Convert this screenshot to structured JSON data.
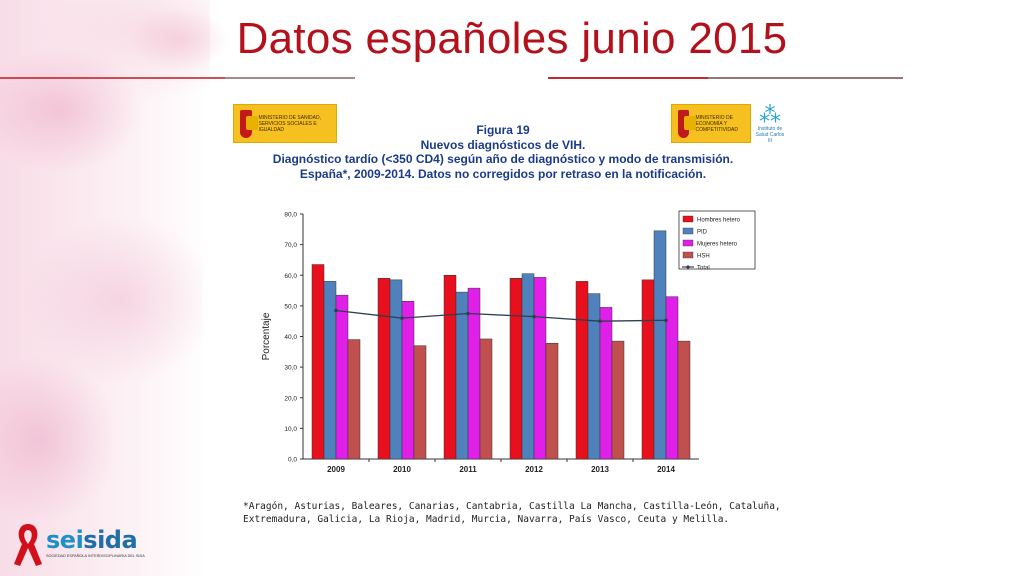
{
  "slide": {
    "title": "Datos españoles junio 2015"
  },
  "logos": {
    "left_ministry": "MINISTERIO DE SANIDAD, SERVICIOS SOCIALES E IGUALDAD",
    "right_ministry": "MINISTERIO DE ECONOMÍA Y COMPETITIVIDAD",
    "institute": "Instituto de Salud Carlos III",
    "society_word_a": "sei",
    "society_word_b": "sida",
    "society_sub": "SOCIEDAD ESPAÑOLA INTERDISCIPLINARIA DEL SIDA"
  },
  "figure": {
    "number": "Figura 19",
    "line1": "Nuevos diagnósticos de VIH.",
    "line2": "Diagnóstico tardío (<350 CD4) según año de diagnóstico y modo de transmisión.",
    "line3": "España*, 2009-2014. Datos no corregidos por retraso en la notificación.",
    "footnote": "*Aragón, Asturias, Baleares, Canarias, Cantabria, Castilla La Mancha, Castilla-León, Cataluña, Extremadura, Galicia, La Rioja, Madrid, Murcia, Navarra, País Vasco, Ceuta y Melilla."
  },
  "chart_data": {
    "type": "bar",
    "categories": [
      "2009",
      "2010",
      "2011",
      "2012",
      "2013",
      "2014"
    ],
    "series": [
      {
        "name": "Hombres hetero",
        "color": "#e8101c",
        "values": [
          63.5,
          59.0,
          60.0,
          59.0,
          58.0,
          58.5
        ]
      },
      {
        "name": "PID",
        "color": "#4f81bd",
        "values": [
          58.0,
          58.5,
          54.5,
          60.5,
          54.0,
          74.5
        ]
      },
      {
        "name": "Mujeres hetero",
        "color": "#e020e8",
        "values": [
          53.5,
          51.5,
          55.8,
          59.3,
          49.5,
          53.0
        ]
      },
      {
        "name": "HSH",
        "color": "#c0504d",
        "values": [
          39.0,
          37.0,
          39.2,
          37.8,
          38.5,
          38.5
        ]
      }
    ],
    "line_series": {
      "name": "Total",
      "color": "#2f3f4f",
      "values": [
        48.5,
        46.0,
        47.5,
        46.5,
        45.0,
        45.3
      ]
    },
    "ylabel": "Porcentaje",
    "xlabel": "",
    "ylim": [
      0,
      80
    ],
    "yticks": [
      "0,0",
      "10,0",
      "20,0",
      "30,0",
      "40,0",
      "50,0",
      "60,0",
      "70,0",
      "80,0"
    ],
    "grid": false,
    "legend": "top-right"
  }
}
